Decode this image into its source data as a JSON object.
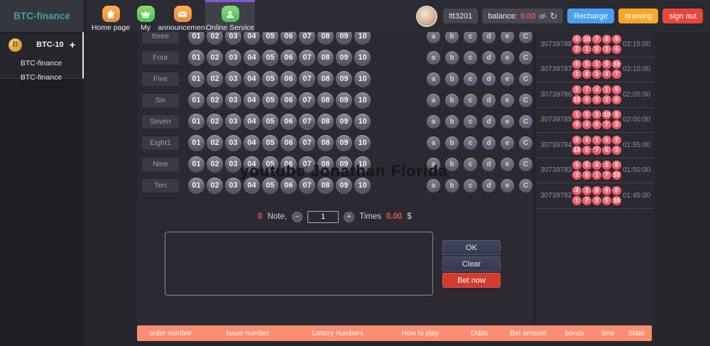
{
  "app": {
    "title": "BTC-finance"
  },
  "header": {
    "nav": [
      {
        "label": "Home page",
        "icon": "home-icon",
        "active": false
      },
      {
        "label": "My",
        "icon": "crown-icon",
        "active": false
      },
      {
        "label": "announcement",
        "icon": "mail-icon",
        "active": false
      },
      {
        "label": "Online Service",
        "icon": "service-icon",
        "active": true
      }
    ],
    "user": {
      "name": "ltt3201",
      "balance_label": "balance:",
      "balance_value": "0.00"
    },
    "recharge_label": "Recharge",
    "drawing_label": "drawing",
    "signout_label": "sign out"
  },
  "sidebar": {
    "coin_label": "BTC-10",
    "add_label": "+",
    "items": [
      "BTC-finance",
      "BTC-finance"
    ]
  },
  "betting": {
    "row_labels": [
      "three",
      "Four",
      "Five",
      "Six",
      "Seven",
      "Eight1",
      "Nine",
      "Ten"
    ],
    "numbers": [
      "01",
      "02",
      "03",
      "04",
      "05",
      "06",
      "07",
      "08",
      "09",
      "10"
    ],
    "letters": [
      "a",
      "b",
      "c",
      "d",
      "e",
      "C"
    ],
    "note": {
      "count": "0",
      "note_label": "Note,",
      "times_value": "1",
      "times_label": "Times",
      "amount": "0.00",
      "currency": "$"
    },
    "ok_label": "OK",
    "clear_label": "Clear",
    "bet_label": "Bet now"
  },
  "results": [
    {
      "issue": "30739788",
      "line1": [
        "6",
        "10",
        "7",
        "8",
        "9"
      ],
      "line2": [
        "2",
        "1",
        "5",
        "3",
        "4"
      ],
      "time": "02:15:00"
    },
    {
      "issue": "30739787",
      "line1": [
        "6",
        "5",
        "1",
        "9",
        "10"
      ],
      "line2": [
        "2",
        "8",
        "3",
        "4",
        "7"
      ],
      "time": "02:10:00"
    },
    {
      "issue": "30739786",
      "line1": [
        "2",
        "7",
        "4",
        "1",
        "9"
      ],
      "line2": [
        "10",
        "8",
        "5",
        "3",
        "6"
      ],
      "time": "02:05:00"
    },
    {
      "issue": "30739785",
      "line1": [
        "1",
        "5",
        "2",
        "10",
        "8"
      ],
      "line2": [
        "9",
        "4",
        "6",
        "7",
        "3"
      ],
      "time": "02:00:00"
    },
    {
      "issue": "30739784",
      "line1": [
        "8",
        "4",
        "1",
        "9",
        "2"
      ],
      "line2": [
        "10",
        "5",
        "7",
        "6",
        "3"
      ],
      "time": "01:55:00"
    },
    {
      "issue": "30739783",
      "line1": [
        "9",
        "5",
        "4",
        "2",
        "8"
      ],
      "line2": [
        "3",
        "6",
        "1",
        "7",
        "10"
      ],
      "time": "01:50:00"
    },
    {
      "issue": "30739782",
      "line1": [
        "4",
        "3",
        "8",
        "9",
        "6"
      ],
      "line2": [
        "1",
        "7",
        "2",
        "5",
        "10"
      ],
      "time": "01:45:00"
    }
  ],
  "footer": {
    "columns": [
      "order number",
      "Issue number",
      "Lottery numbers",
      "How to play",
      "Odds",
      "Bet amount",
      "bonus",
      "time",
      "State"
    ]
  },
  "watermark": "youtube Jonathan Florida",
  "colors": {
    "accent_teal": "#3aa79d",
    "recharge_blue": "#4a9ff0",
    "drawing_orange": "#f9a825",
    "signout_red": "#e8453c",
    "bet_red": "#d43a30",
    "footer_salmon": "#f98e72",
    "ball_red": "#f3606c",
    "active_tab_purple": "#8159d8",
    "balance_red": "#e05a5a"
  }
}
